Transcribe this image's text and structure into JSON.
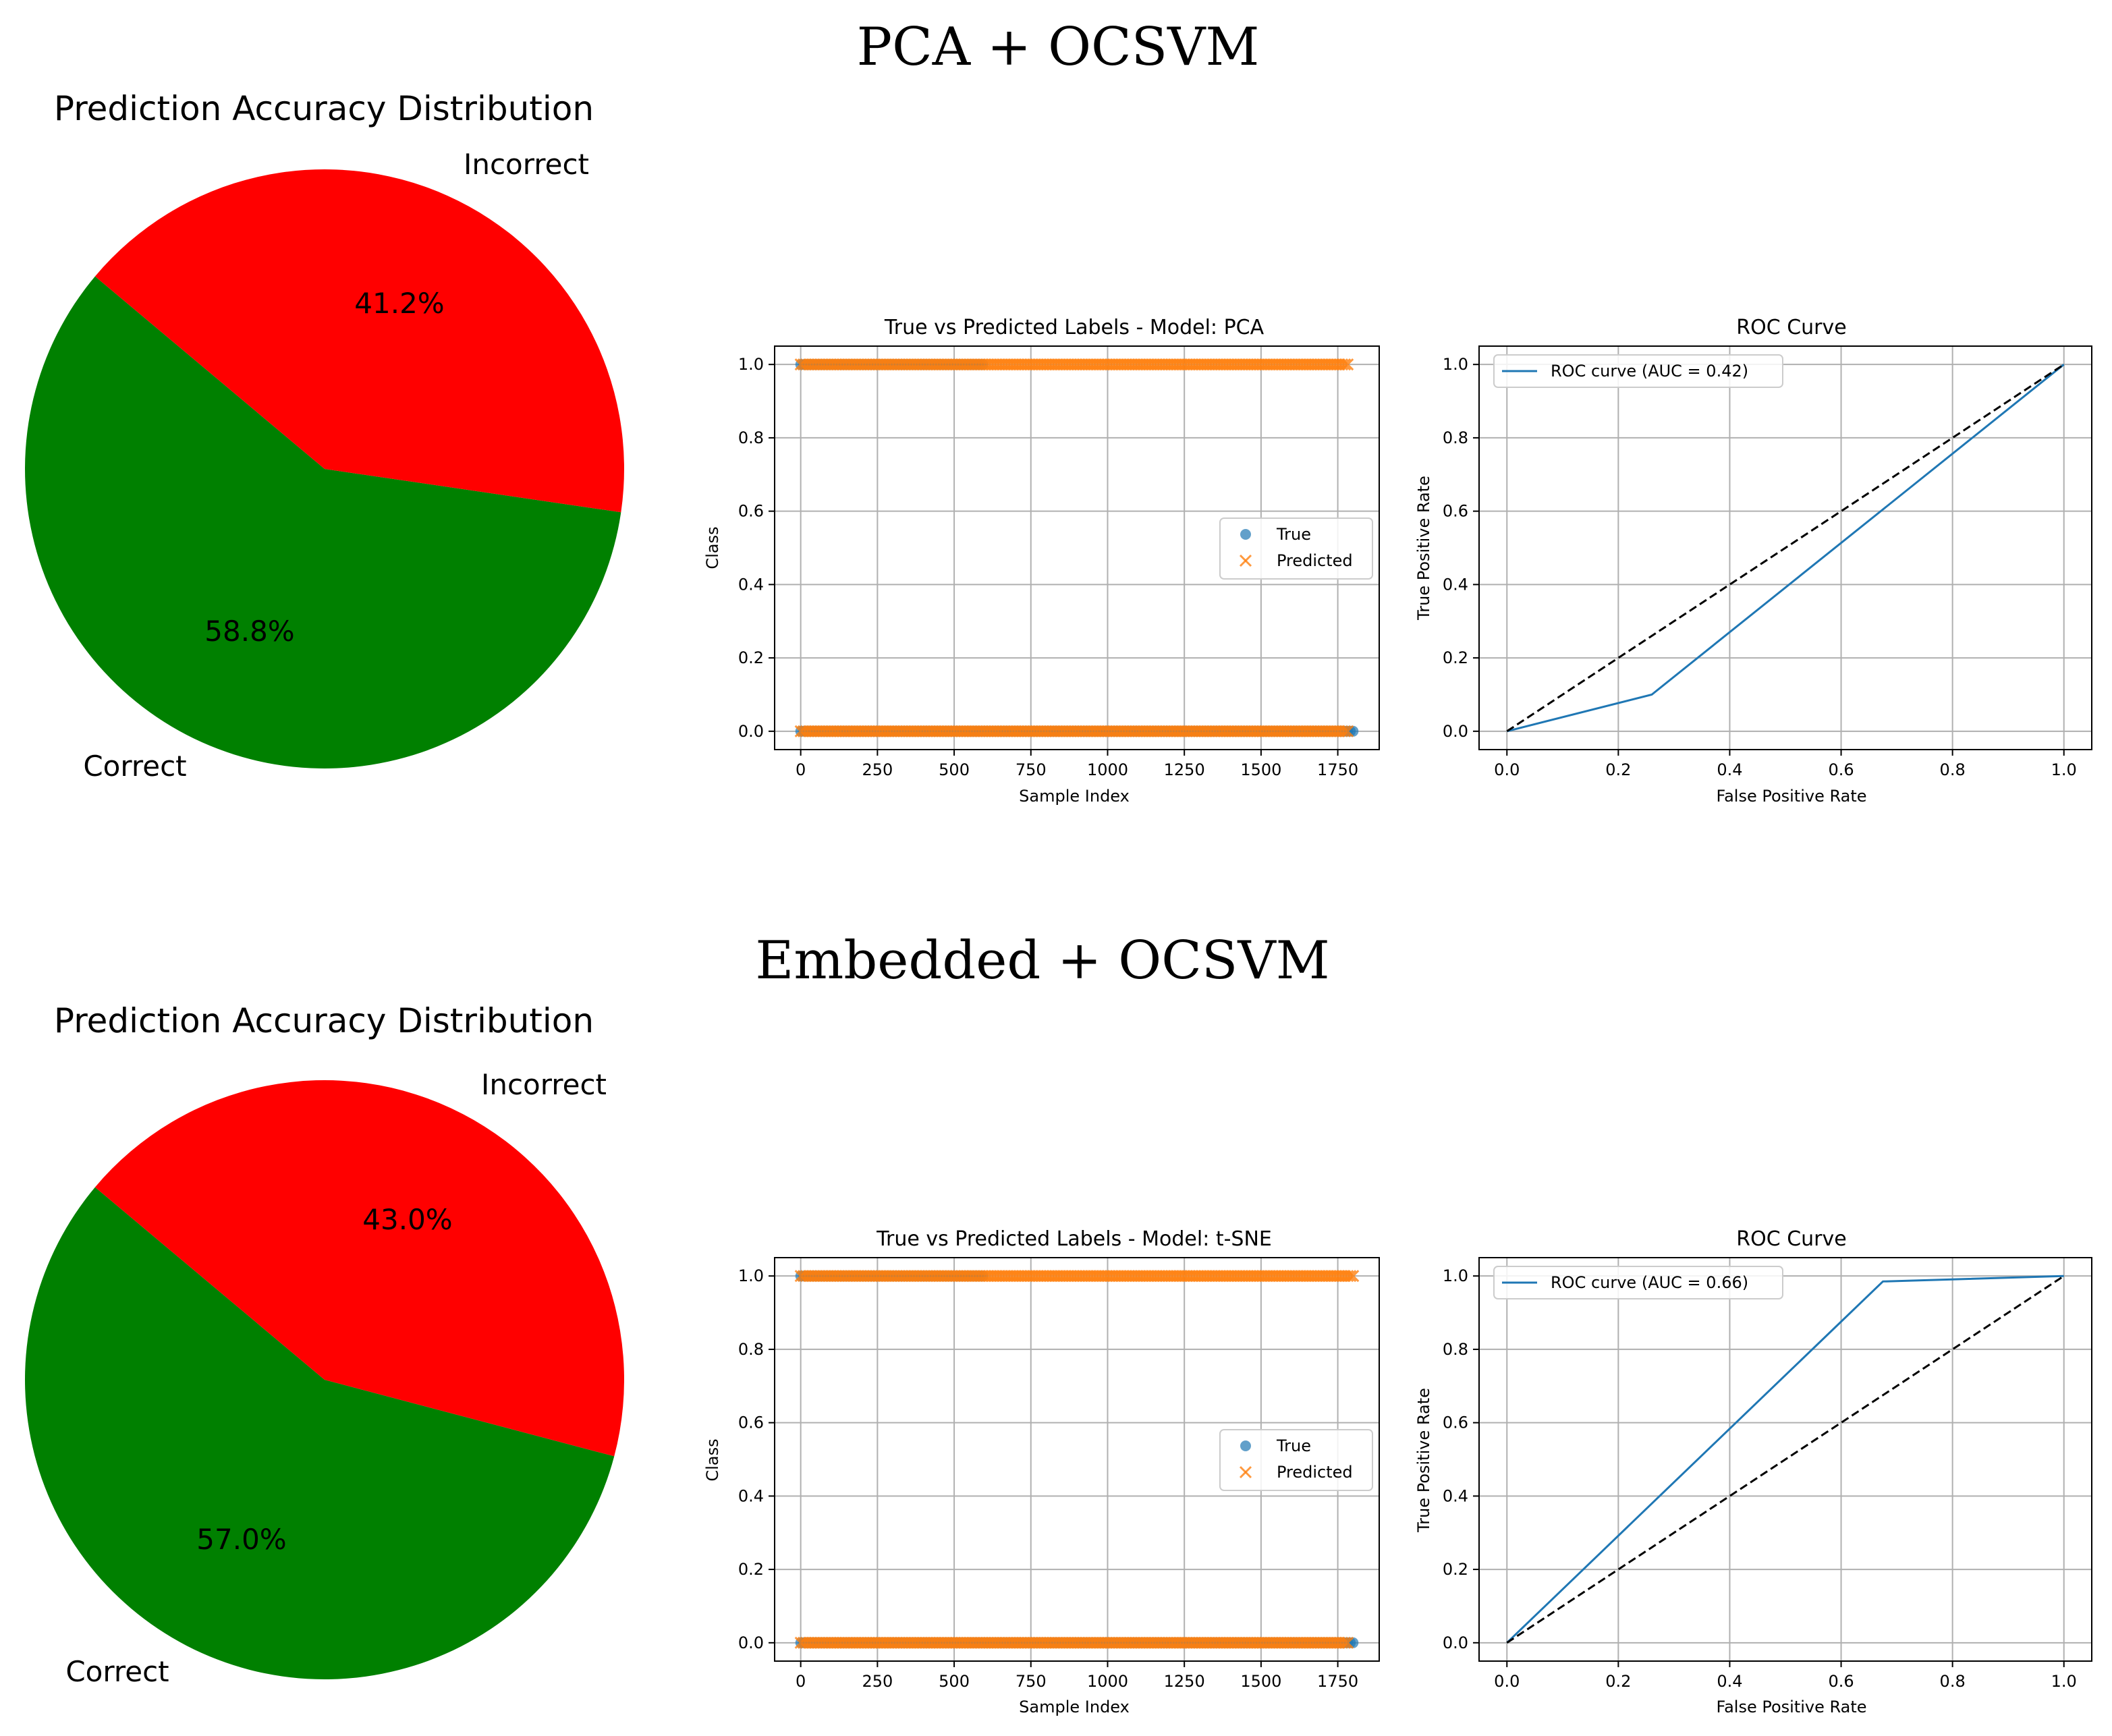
{
  "sections": [
    {
      "title": "PCA + OCSVM",
      "chart_data": [
        {
          "type": "pie",
          "title": "Prediction Accuracy Distribution",
          "labels": [
            "Correct",
            "Incorrect"
          ],
          "values": [
            58.8,
            41.2
          ],
          "pct_labels": [
            "58.8%",
            "41.2%"
          ],
          "colors": [
            "#008000",
            "#ff0000"
          ],
          "startangle": 140
        },
        {
          "type": "scatter",
          "title": "True vs Predicted Labels - Model: PCA",
          "xlabel": "Sample Index",
          "ylabel": "Class",
          "xlim": [
            -85,
            1885
          ],
          "ylim": [
            -0.05,
            1.05
          ],
          "xticks": [
            0,
            250,
            500,
            750,
            1000,
            1250,
            1500,
            1750
          ],
          "yticks": [
            0.0,
            0.2,
            0.4,
            0.6,
            0.8,
            1.0
          ],
          "grid": true,
          "legend_position": "center-right",
          "series": [
            {
              "name": "True",
              "marker": "circle",
              "color": "#1f77b4",
              "segments": [
                {
                  "y": 1,
                  "x_start": 0,
                  "x_end": 600
                },
                {
                  "y": 0,
                  "x_start": 0,
                  "x_end": 1800
                }
              ]
            },
            {
              "name": "Predicted",
              "marker": "x",
              "color": "#ff7f0e",
              "segments": [
                {
                  "y": 1,
                  "x_start": 0,
                  "x_end": 1790
                },
                {
                  "y": 0,
                  "x_start": 0,
                  "x_end": 1790
                }
              ]
            }
          ]
        },
        {
          "type": "line",
          "title": "ROC Curve",
          "xlabel": "False Positive Rate",
          "ylabel": "True Positive Rate",
          "xlim": [
            -0.05,
            1.05
          ],
          "ylim": [
            -0.05,
            1.05
          ],
          "xticks": [
            0.0,
            0.2,
            0.4,
            0.6,
            0.8,
            1.0
          ],
          "yticks": [
            0.0,
            0.2,
            0.4,
            0.6,
            0.8,
            1.0
          ],
          "grid": true,
          "legend_position": "upper-left",
          "legend_label": "ROC curve (AUC = 0.42)",
          "series": [
            {
              "name": "ROC curve (AUC = 0.42)",
              "color": "#1f77b4",
              "x": [
                0.0,
                0.26,
                1.0
              ],
              "y": [
                0.0,
                0.1,
                1.0
              ]
            },
            {
              "name": "chance",
              "color": "#000000",
              "dashed": true,
              "x": [
                0.0,
                1.0
              ],
              "y": [
                0.0,
                1.0
              ]
            }
          ]
        }
      ]
    },
    {
      "title": "Embedded + OCSVM",
      "chart_data": [
        {
          "type": "pie",
          "title": "Prediction Accuracy Distribution",
          "labels": [
            "Correct",
            "Incorrect"
          ],
          "values": [
            57.0,
            43.0
          ],
          "pct_labels": [
            "57.0%",
            "43.0%"
          ],
          "colors": [
            "#008000",
            "#ff0000"
          ],
          "startangle": 140
        },
        {
          "type": "scatter",
          "title": "True vs Predicted Labels - Model: t-SNE",
          "xlabel": "Sample Index",
          "ylabel": "Class",
          "xlim": [
            -85,
            1885
          ],
          "ylim": [
            -0.05,
            1.05
          ],
          "xticks": [
            0,
            250,
            500,
            750,
            1000,
            1250,
            1500,
            1750
          ],
          "yticks": [
            0.0,
            0.2,
            0.4,
            0.6,
            0.8,
            1.0
          ],
          "grid": true,
          "legend_position": "center-right",
          "series": [
            {
              "name": "True",
              "marker": "circle",
              "color": "#1f77b4",
              "segments": [
                {
                  "y": 1,
                  "x_start": 0,
                  "x_end": 600
                },
                {
                  "y": 0,
                  "x_start": 0,
                  "x_end": 1800
                }
              ]
            },
            {
              "name": "Predicted",
              "marker": "x",
              "color": "#ff7f0e",
              "segments": [
                {
                  "y": 1,
                  "x_start": 0,
                  "x_end": 1800
                },
                {
                  "y": 0,
                  "x_start": 0,
                  "x_end": 1790
                }
              ]
            }
          ]
        },
        {
          "type": "line",
          "title": "ROC Curve",
          "xlabel": "False Positive Rate",
          "ylabel": "True Positive Rate",
          "xlim": [
            -0.05,
            1.05
          ],
          "ylim": [
            -0.05,
            1.05
          ],
          "xticks": [
            0.0,
            0.2,
            0.4,
            0.6,
            0.8,
            1.0
          ],
          "yticks": [
            0.0,
            0.2,
            0.4,
            0.6,
            0.8,
            1.0
          ],
          "grid": true,
          "legend_position": "upper-left",
          "legend_label": "ROC curve (AUC = 0.66)",
          "series": [
            {
              "name": "ROC curve (AUC = 0.66)",
              "color": "#1f77b4",
              "x": [
                0.0,
                0.675,
                1.0
              ],
              "y": [
                0.0,
                0.985,
                1.0
              ]
            },
            {
              "name": "chance",
              "color": "#000000",
              "dashed": true,
              "x": [
                0.0,
                1.0
              ],
              "y": [
                0.0,
                1.0
              ]
            }
          ]
        }
      ]
    }
  ]
}
